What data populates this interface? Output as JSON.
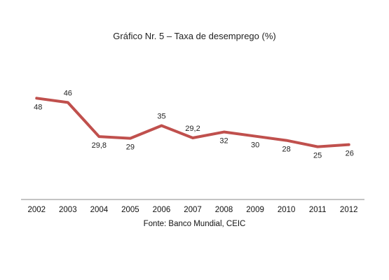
{
  "chart_data": {
    "type": "line",
    "title": "Gráfico Nr. 5 – Taxa de desemprego (%)",
    "xlabel": "",
    "ylabel": "",
    "categories": [
      "2002",
      "2003",
      "2004",
      "2005",
      "2006",
      "2007",
      "2008",
      "2009",
      "2010",
      "2011",
      "2012"
    ],
    "series": [
      {
        "values": [
          48,
          46,
          29.8,
          29,
          35,
          29.2,
          32,
          30,
          28,
          25,
          26
        ],
        "data_labels": [
          "48",
          "46",
          "29,8",
          "29",
          "35",
          "29,2",
          "32",
          "30",
          "28",
          "25",
          "26"
        ],
        "color": "#c0504d"
      }
    ],
    "ylim": [
      0,
      70
    ],
    "grid": false,
    "legend": "none"
  },
  "source_note": "Fonte: Banco Mundial, CEIC"
}
